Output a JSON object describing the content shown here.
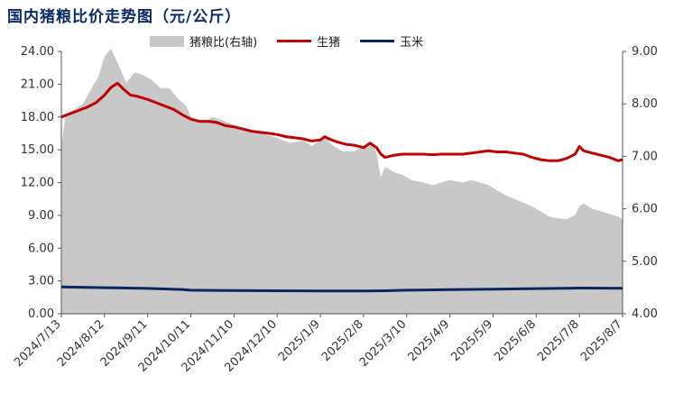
{
  "title": "国内猪粮比价走势图（元/公斤）",
  "legend": [
    {
      "name": "猪粮比(右轴)",
      "color": "#c8c8c8",
      "kind": "area"
    },
    {
      "name": "生猪",
      "color": "#c00000",
      "kind": "line"
    },
    {
      "name": "玉米",
      "color": "#0b2561",
      "kind": "line"
    }
  ],
  "chart_data": {
    "type": "line",
    "title": "国内猪粮比价走势图（元/公斤）",
    "x_categories": [
      "2024/7/13",
      "2024/8/12",
      "2024/9/11",
      "2024/10/11",
      "2024/11/10",
      "2024/12/10",
      "2025/1/9",
      "2025/2/8",
      "2025/3/10",
      "2025/4/9",
      "2025/5/9",
      "2025/6/8",
      "2025/7/8",
      "2025/8/7"
    ],
    "y_left": {
      "ticks": [
        "24.00",
        "21.00",
        "18.00",
        "15.00",
        "12.00",
        "9.00",
        "6.00",
        "3.00",
        "0.00"
      ],
      "min": 0,
      "max": 24
    },
    "y_right": {
      "ticks": [
        "9.00",
        "8.00",
        "7.00",
        "6.00",
        "5.00",
        "4.00"
      ],
      "min": 4,
      "max": 9
    },
    "series": [
      {
        "name": "猪粮比(右轴)",
        "axis": "right",
        "type": "area",
        "color": "#c8c8c8",
        "points": [
          [
            0,
            7.2
          ],
          [
            0.1,
            7.8
          ],
          [
            0.3,
            7.9
          ],
          [
            0.5,
            8.0
          ],
          [
            0.7,
            8.3
          ],
          [
            0.85,
            8.5
          ],
          [
            1.0,
            8.9
          ],
          [
            1.15,
            9.05
          ],
          [
            1.35,
            8.7
          ],
          [
            1.5,
            8.4
          ],
          [
            1.7,
            8.6
          ],
          [
            1.9,
            8.55
          ],
          [
            2.1,
            8.45
          ],
          [
            2.3,
            8.3
          ],
          [
            2.5,
            8.3
          ],
          [
            2.7,
            8.1
          ],
          [
            2.9,
            7.95
          ],
          [
            3.0,
            7.75
          ],
          [
            3.3,
            7.65
          ],
          [
            3.5,
            7.75
          ],
          [
            3.7,
            7.7
          ],
          [
            4.0,
            7.6
          ],
          [
            4.3,
            7.5
          ],
          [
            4.6,
            7.45
          ],
          [
            5.0,
            7.35
          ],
          [
            5.3,
            7.25
          ],
          [
            5.6,
            7.3
          ],
          [
            5.8,
            7.2
          ],
          [
            6.0,
            7.3
          ],
          [
            6.1,
            7.35
          ],
          [
            6.3,
            7.2
          ],
          [
            6.5,
            7.1
          ],
          [
            6.8,
            7.1
          ],
          [
            7.0,
            7.2
          ],
          [
            7.2,
            7.25
          ],
          [
            7.3,
            7.05
          ],
          [
            7.4,
            6.6
          ],
          [
            7.5,
            6.8
          ],
          [
            7.7,
            6.7
          ],
          [
            7.9,
            6.65
          ],
          [
            8.1,
            6.55
          ],
          [
            8.4,
            6.5
          ],
          [
            8.6,
            6.45
          ],
          [
            8.8,
            6.5
          ],
          [
            9.0,
            6.55
          ],
          [
            9.3,
            6.5
          ],
          [
            9.5,
            6.55
          ],
          [
            9.7,
            6.5
          ],
          [
            9.9,
            6.45
          ],
          [
            10.1,
            6.35
          ],
          [
            10.3,
            6.25
          ],
          [
            10.6,
            6.15
          ],
          [
            10.9,
            6.05
          ],
          [
            11.1,
            5.95
          ],
          [
            11.3,
            5.85
          ],
          [
            11.5,
            5.82
          ],
          [
            11.7,
            5.8
          ],
          [
            11.9,
            5.88
          ],
          [
            12.0,
            6.05
          ],
          [
            12.1,
            6.1
          ],
          [
            12.3,
            6.0
          ],
          [
            12.5,
            5.95
          ],
          [
            12.7,
            5.9
          ],
          [
            12.9,
            5.85
          ],
          [
            13.0,
            5.8
          ]
        ]
      },
      {
        "name": "生猪",
        "axis": "left",
        "type": "line",
        "color": "#c00000",
        "points": [
          [
            0,
            18.0
          ],
          [
            0.2,
            18.3
          ],
          [
            0.4,
            18.6
          ],
          [
            0.6,
            18.9
          ],
          [
            0.8,
            19.3
          ],
          [
            1.0,
            20.0
          ],
          [
            1.15,
            20.7
          ],
          [
            1.3,
            21.1
          ],
          [
            1.45,
            20.5
          ],
          [
            1.6,
            20.0
          ],
          [
            1.75,
            19.9
          ],
          [
            2.0,
            19.6
          ],
          [
            2.2,
            19.3
          ],
          [
            2.4,
            19.0
          ],
          [
            2.6,
            18.7
          ],
          [
            2.8,
            18.2
          ],
          [
            3.0,
            17.8
          ],
          [
            3.2,
            17.6
          ],
          [
            3.4,
            17.6
          ],
          [
            3.6,
            17.5
          ],
          [
            3.8,
            17.2
          ],
          [
            4.0,
            17.1
          ],
          [
            4.2,
            16.9
          ],
          [
            4.4,
            16.7
          ],
          [
            4.6,
            16.6
          ],
          [
            4.8,
            16.5
          ],
          [
            5.0,
            16.4
          ],
          [
            5.2,
            16.2
          ],
          [
            5.4,
            16.1
          ],
          [
            5.6,
            16.0
          ],
          [
            5.8,
            15.8
          ],
          [
            6.0,
            15.9
          ],
          [
            6.1,
            16.2
          ],
          [
            6.2,
            16.0
          ],
          [
            6.4,
            15.7
          ],
          [
            6.6,
            15.5
          ],
          [
            6.8,
            15.4
          ],
          [
            7.0,
            15.2
          ],
          [
            7.15,
            15.6
          ],
          [
            7.3,
            15.2
          ],
          [
            7.4,
            14.6
          ],
          [
            7.5,
            14.3
          ],
          [
            7.7,
            14.5
          ],
          [
            7.9,
            14.6
          ],
          [
            8.1,
            14.6
          ],
          [
            8.4,
            14.6
          ],
          [
            8.6,
            14.55
          ],
          [
            8.8,
            14.6
          ],
          [
            9.0,
            14.6
          ],
          [
            9.3,
            14.6
          ],
          [
            9.5,
            14.7
          ],
          [
            9.7,
            14.8
          ],
          [
            9.9,
            14.9
          ],
          [
            10.1,
            14.8
          ],
          [
            10.3,
            14.8
          ],
          [
            10.5,
            14.7
          ],
          [
            10.7,
            14.6
          ],
          [
            10.9,
            14.3
          ],
          [
            11.1,
            14.1
          ],
          [
            11.3,
            14.0
          ],
          [
            11.5,
            14.0
          ],
          [
            11.7,
            14.2
          ],
          [
            11.9,
            14.6
          ],
          [
            12.0,
            15.3
          ],
          [
            12.1,
            14.9
          ],
          [
            12.3,
            14.7
          ],
          [
            12.5,
            14.5
          ],
          [
            12.7,
            14.3
          ],
          [
            12.9,
            14.0
          ],
          [
            13.0,
            14.1
          ]
        ]
      },
      {
        "name": "玉米",
        "axis": "left",
        "type": "line",
        "color": "#0b2561",
        "points": [
          [
            0,
            2.45
          ],
          [
            1.0,
            2.38
          ],
          [
            2.0,
            2.32
          ],
          [
            2.8,
            2.22
          ],
          [
            3.0,
            2.15
          ],
          [
            4.0,
            2.12
          ],
          [
            5.0,
            2.1
          ],
          [
            6.0,
            2.08
          ],
          [
            7.0,
            2.08
          ],
          [
            7.5,
            2.1
          ],
          [
            8.0,
            2.15
          ],
          [
            8.5,
            2.18
          ],
          [
            9.0,
            2.2
          ],
          [
            10.0,
            2.25
          ],
          [
            11.0,
            2.3
          ],
          [
            12.0,
            2.35
          ],
          [
            13.0,
            2.33
          ]
        ]
      }
    ]
  }
}
